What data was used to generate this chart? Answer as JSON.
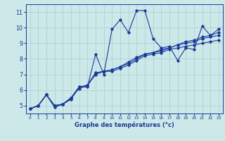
{
  "xlabel": "Graphe des températures (°c)",
  "bg_color": "#cce8e8",
  "line_color": "#1a3a9a",
  "grid_color": "#aacece",
  "xlim": [
    -0.5,
    23.5
  ],
  "ylim": [
    4.5,
    11.5
  ],
  "xticks": [
    0,
    1,
    2,
    3,
    4,
    5,
    6,
    7,
    8,
    9,
    10,
    11,
    12,
    13,
    14,
    15,
    16,
    17,
    18,
    19,
    20,
    21,
    22,
    23
  ],
  "yticks": [
    5,
    6,
    7,
    8,
    9,
    10,
    11
  ],
  "series": [
    [
      4.8,
      5.0,
      5.7,
      4.9,
      5.1,
      5.4,
      6.2,
      6.2,
      8.3,
      7.0,
      9.9,
      10.5,
      9.7,
      11.1,
      11.1,
      9.3,
      8.7,
      8.8,
      7.9,
      8.7,
      8.6,
      10.1,
      9.5,
      9.9
    ],
    [
      4.8,
      5.0,
      5.7,
      5.0,
      5.1,
      5.5,
      6.2,
      6.3,
      7.1,
      7.2,
      7.2,
      7.4,
      7.6,
      7.9,
      8.2,
      8.3,
      8.4,
      8.6,
      8.7,
      8.8,
      8.9,
      9.0,
      9.1,
      9.2
    ],
    [
      4.8,
      5.0,
      5.7,
      5.0,
      5.1,
      5.5,
      6.1,
      6.3,
      7.0,
      7.2,
      7.3,
      7.5,
      7.7,
      8.0,
      8.3,
      8.4,
      8.5,
      8.7,
      8.9,
      9.0,
      9.1,
      9.3,
      9.4,
      9.5
    ],
    [
      4.8,
      5.0,
      5.7,
      5.0,
      5.1,
      5.5,
      6.2,
      6.3,
      7.1,
      7.2,
      7.3,
      7.5,
      7.8,
      8.1,
      8.3,
      8.4,
      8.6,
      8.7,
      8.9,
      9.1,
      9.2,
      9.4,
      9.5,
      9.7
    ]
  ]
}
